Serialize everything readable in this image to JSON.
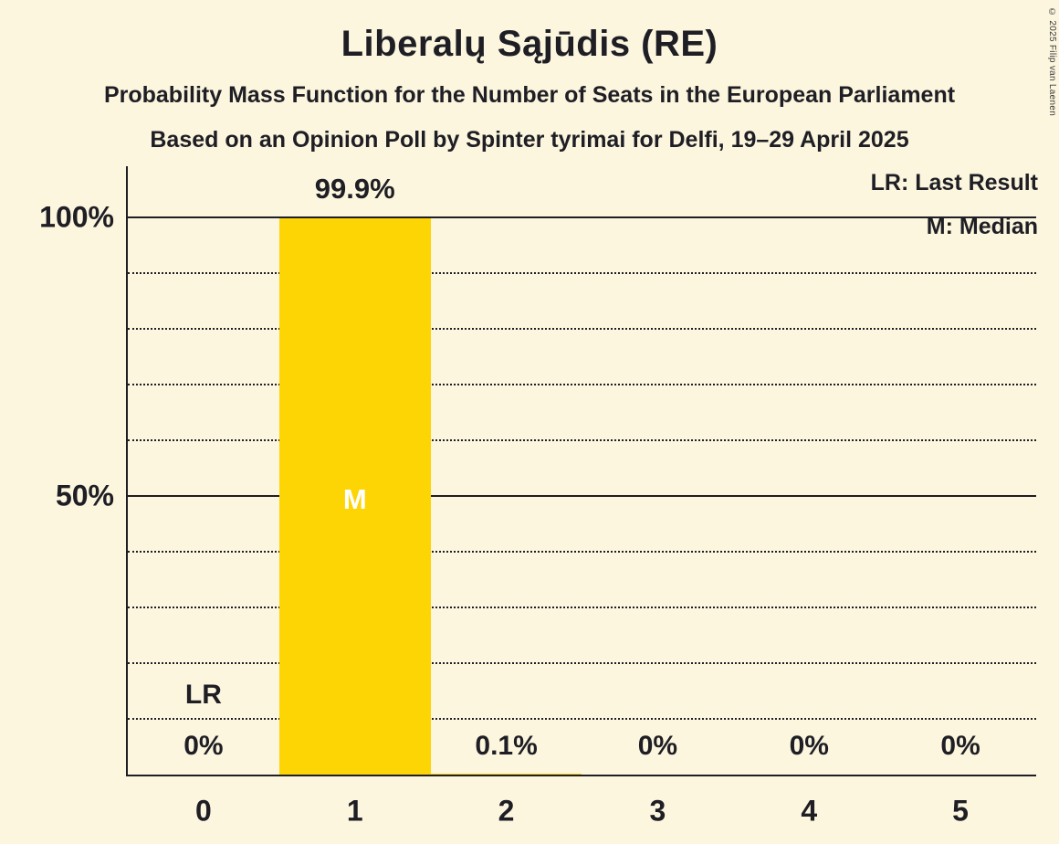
{
  "title": "Liberalų Sąjūdis (RE)",
  "subtitle": "Probability Mass Function for the Number of Seats in the European Parliament",
  "subsubtitle": "Based on an Opinion Poll by Spinter tyrimai for Delfi, 19–29 April 2025",
  "legend": {
    "lr": "LR: Last Result",
    "m": "M: Median"
  },
  "copyright": "© 2025 Filip van Laenen",
  "colors": {
    "background": "#FCF6DF",
    "bar": "#FDD404",
    "text": "#1E1E24",
    "bar_label": "#FFFFFF"
  },
  "chart_data": {
    "type": "bar",
    "title": "Liberalų Sąjūdis (RE)",
    "categories": [
      "0",
      "1",
      "2",
      "3",
      "4",
      "5"
    ],
    "values": [
      0,
      99.9,
      0.1,
      0,
      0,
      0
    ],
    "value_labels": [
      "0%",
      "99.9%",
      "0.1%",
      "0%",
      "0%",
      "0%"
    ],
    "xlabel": "",
    "ylabel": "",
    "ylim": [
      0,
      100
    ],
    "y_tick_labels": [
      {
        "value": 100,
        "label": "100%"
      },
      {
        "value": 50,
        "label": "50%"
      }
    ],
    "solid_gridlines": [
      100,
      50
    ],
    "dotted_gridlines": [
      90,
      80,
      70,
      60,
      40,
      30,
      20,
      10
    ],
    "grid": true,
    "legend_position": "top-right",
    "median_seat_index": 1,
    "median_marker": "M",
    "last_result_seat_index": 0,
    "last_result_marker": "LR"
  }
}
